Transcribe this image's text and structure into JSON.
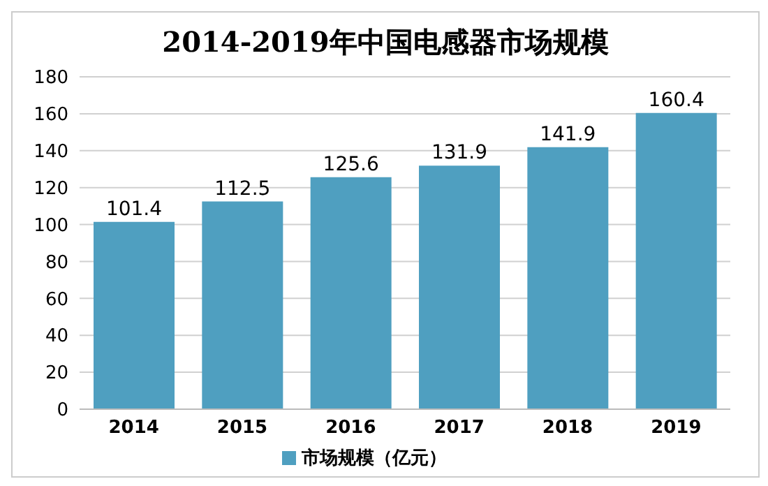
{
  "chart_data": {
    "type": "bar",
    "title": "2014-2019年中国电感器市场规模",
    "categories": [
      "2014",
      "2015",
      "2016",
      "2017",
      "2018",
      "2019"
    ],
    "series": [
      {
        "name": "市场规模（亿元）",
        "color": "#4f9fc0",
        "values": [
          101.4,
          112.5,
          125.6,
          131.9,
          141.9,
          160.4
        ]
      }
    ],
    "ylim": [
      0,
      180
    ],
    "yticks": [
      0,
      20,
      40,
      60,
      80,
      100,
      120,
      140,
      160,
      180
    ],
    "grid": "y",
    "legend": "bottom",
    "data_labels": true
  }
}
